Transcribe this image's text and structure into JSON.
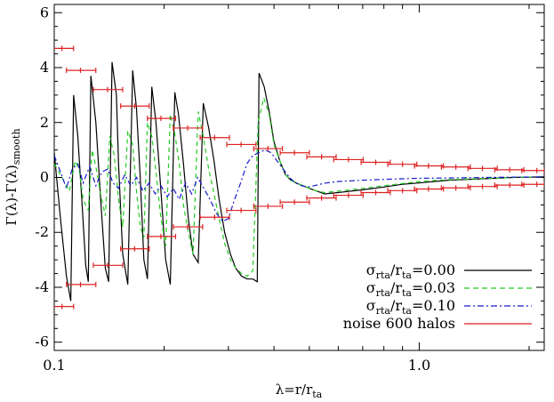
{
  "chart_data": {
    "type": "line",
    "title": "",
    "xscale": "log",
    "xlim": [
      0.1,
      2.2
    ],
    "ylim": [
      -6.3,
      6.3
    ],
    "xticks": [
      0.1,
      1.0
    ],
    "xtick_labels": [
      "0.1",
      "1.0"
    ],
    "yticks": [
      -6,
      -4,
      -2,
      0,
      2,
      4,
      6
    ],
    "ytick_labels": [
      "-6",
      "-4",
      "-2",
      "0",
      "2",
      "4",
      "6"
    ],
    "xlabel": {
      "main": "λ=r/r",
      "sub": "ta"
    },
    "ylabel": {
      "a": "Γ(λ)-Γ(λ)",
      "sub": "smooth"
    },
    "grid": false,
    "legend_position": "bottom-right",
    "legend": [
      {
        "prefix": "σ",
        "sub1": "rta",
        "mid": "/r",
        "sub2": "ta",
        "suffix": "=0.00",
        "color": "#000000",
        "dash": ""
      },
      {
        "prefix": "σ",
        "sub1": "rta",
        "mid": "/r",
        "sub2": "ta",
        "suffix": "=0.03",
        "color": "#22cc22",
        "dash": "6,4"
      },
      {
        "prefix": "σ",
        "sub1": "rta",
        "mid": "/r",
        "sub2": "ta",
        "suffix": "=0.10",
        "color": "#1a1acc",
        "dash": "7,3,2,3"
      },
      {
        "prefix": "noise 600 halos",
        "sub1": "",
        "mid": "",
        "sub2": "",
        "suffix": "",
        "color": "#dd2222",
        "dash": ""
      }
    ],
    "series": [
      {
        "color": "#000000",
        "dash": "",
        "x": [
          0.1,
          0.104,
          0.108,
          0.111,
          0.113,
          0.116,
          0.119,
          0.122,
          0.124,
          0.126,
          0.13,
          0.134,
          0.138,
          0.141,
          0.144,
          0.148,
          0.15,
          0.154,
          0.159,
          0.164,
          0.168,
          0.172,
          0.176,
          0.18,
          0.185,
          0.19,
          0.196,
          0.202,
          0.208,
          0.214,
          0.219,
          0.226,
          0.233,
          0.24,
          0.248,
          0.256,
          0.265,
          0.274,
          0.283,
          0.293,
          0.304,
          0.314,
          0.326,
          0.338,
          0.35,
          0.36,
          0.364,
          0.376,
          0.388,
          0.4,
          0.415,
          0.43,
          0.445,
          0.46,
          0.48,
          0.5,
          0.525,
          0.55,
          0.6,
          0.7,
          0.8,
          0.9,
          1.0,
          1.2,
          1.5,
          1.8,
          2.2
        ],
        "y": [
          0.9,
          -1.5,
          -3.6,
          -4.5,
          3.0,
          1.5,
          -0.8,
          -3.2,
          -3.8,
          3.7,
          2.0,
          -0.8,
          -3.3,
          -3.8,
          4.2,
          3.0,
          0.5,
          -2.8,
          -3.9,
          3.9,
          2.5,
          0.0,
          -3.0,
          -3.7,
          3.3,
          2.0,
          -0.5,
          -3.0,
          -3.9,
          3.1,
          2.3,
          0.5,
          -1.5,
          -2.8,
          -3.1,
          2.7,
          1.8,
          0.6,
          -0.8,
          -2.0,
          -2.8,
          -3.3,
          -3.6,
          -3.7,
          -3.7,
          -3.8,
          3.8,
          3.3,
          2.4,
          1.3,
          0.6,
          0.1,
          -0.1,
          -0.2,
          -0.3,
          -0.4,
          -0.5,
          -0.6,
          -0.55,
          -0.45,
          -0.35,
          -0.25,
          -0.2,
          -0.1,
          -0.05,
          0.0,
          0.02
        ]
      },
      {
        "color": "#22cc22",
        "dash": "5,4",
        "x": [
          0.1,
          0.105,
          0.11,
          0.114,
          0.117,
          0.12,
          0.124,
          0.127,
          0.13,
          0.134,
          0.138,
          0.142,
          0.146,
          0.15,
          0.154,
          0.159,
          0.164,
          0.168,
          0.172,
          0.176,
          0.18,
          0.185,
          0.19,
          0.196,
          0.202,
          0.208,
          0.214,
          0.22,
          0.226,
          0.233,
          0.24,
          0.248,
          0.256,
          0.265,
          0.274,
          0.283,
          0.293,
          0.304,
          0.314,
          0.326,
          0.338,
          0.35,
          0.362,
          0.375,
          0.388,
          0.4,
          0.415,
          0.43,
          0.445,
          0.46,
          0.48,
          0.5,
          0.525,
          0.55,
          0.6,
          0.7,
          0.8,
          0.9,
          1.0,
          1.2,
          1.5,
          1.8,
          2.2
        ],
        "y": [
          0.5,
          0.0,
          -0.5,
          0.6,
          0.3,
          -0.8,
          -1.2,
          1.0,
          0.4,
          -0.6,
          -1.4,
          1.5,
          0.8,
          -0.8,
          -1.8,
          1.7,
          1.2,
          -0.5,
          -1.8,
          -2.2,
          2.0,
          1.5,
          0.2,
          -1.5,
          -2.5,
          2.3,
          1.6,
          0.5,
          -1.0,
          -2.0,
          -2.8,
          2.4,
          1.5,
          0.3,
          -0.6,
          -1.5,
          -2.4,
          -3.0,
          -3.3,
          -3.5,
          -3.6,
          -3.4,
          2.0,
          2.9,
          2.3,
          1.2,
          0.6,
          0.1,
          -0.1,
          -0.2,
          -0.3,
          -0.4,
          -0.5,
          -0.55,
          -0.5,
          -0.4,
          -0.3,
          -0.22,
          -0.15,
          -0.08,
          -0.04,
          0.0,
          0.02
        ]
      },
      {
        "color": "#1a1acc",
        "dash": "6,3,2,3",
        "x": [
          0.1,
          0.104,
          0.108,
          0.112,
          0.116,
          0.12,
          0.125,
          0.13,
          0.135,
          0.14,
          0.145,
          0.15,
          0.156,
          0.162,
          0.168,
          0.175,
          0.182,
          0.189,
          0.196,
          0.204,
          0.212,
          0.22,
          0.229,
          0.238,
          0.247,
          0.257,
          0.267,
          0.278,
          0.289,
          0.3,
          0.312,
          0.324,
          0.337,
          0.35,
          0.364,
          0.378,
          0.393,
          0.408,
          0.424,
          0.441,
          0.458,
          0.476,
          0.495,
          0.515,
          0.535,
          0.556,
          0.6,
          0.7,
          0.8,
          0.9,
          1.0,
          1.2,
          1.5,
          1.8,
          2.2
        ],
        "y": [
          0.8,
          0.2,
          -0.4,
          0.3,
          0.5,
          -0.2,
          0.4,
          -0.3,
          0.2,
          0.3,
          -0.2,
          -0.4,
          0.1,
          -0.3,
          0.0,
          -0.5,
          -0.2,
          -0.6,
          -0.3,
          -0.7,
          -0.4,
          -0.8,
          -0.2,
          -0.6,
          0.0,
          -0.4,
          -0.8,
          -1.3,
          -1.6,
          -1.5,
          -0.8,
          -0.2,
          0.5,
          0.8,
          0.9,
          1.0,
          0.9,
          0.6,
          0.3,
          0.0,
          -0.2,
          -0.3,
          -0.35,
          -0.3,
          -0.25,
          -0.2,
          -0.15,
          -0.1,
          -0.07,
          -0.05,
          -0.03,
          -0.02,
          0.0,
          0.01,
          0.02
        ]
      }
    ],
    "noise_errorbars": {
      "color": "#dd2222",
      "x": [
        0.105,
        0.118,
        0.14,
        0.166,
        0.196,
        0.232,
        0.275,
        0.325,
        0.385,
        0.455,
        0.54,
        0.64,
        0.76,
        0.9,
        1.06,
        1.26,
        1.49,
        1.77,
        2.1
      ],
      "xerr_lo": [
        0.097,
        0.108,
        0.128,
        0.152,
        0.18,
        0.212,
        0.251,
        0.297,
        0.352,
        0.416,
        0.492,
        0.583,
        0.693,
        0.82,
        0.97,
        1.15,
        1.36,
        1.61,
        1.91
      ],
      "xerr_hi": [
        0.113,
        0.13,
        0.154,
        0.182,
        0.215,
        0.255,
        0.302,
        0.357,
        0.422,
        0.5,
        0.592,
        0.702,
        0.833,
        0.985,
        1.165,
        1.38,
        1.635,
        1.935,
        2.2
      ],
      "y": [
        4.7,
        3.9,
        3.2,
        2.6,
        2.15,
        1.8,
        1.45,
        1.2,
        1.05,
        0.9,
        0.75,
        0.65,
        0.55,
        0.48,
        0.42,
        0.38,
        0.33,
        0.28,
        0.25
      ]
    }
  }
}
